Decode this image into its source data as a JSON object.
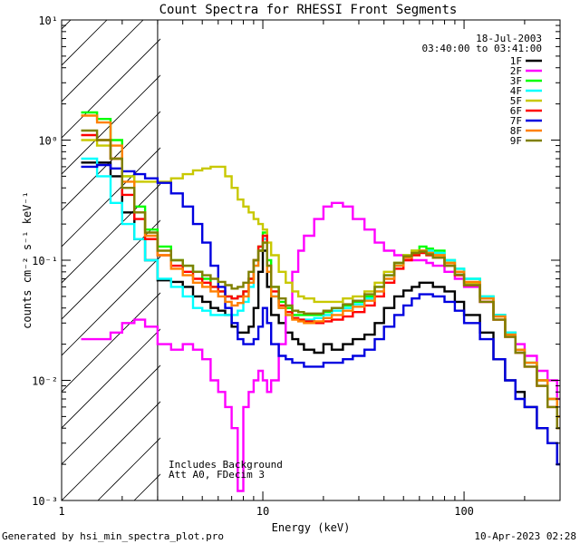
{
  "chart_data": {
    "type": "line",
    "title": "Count Spectra for RHESSI Front Segments",
    "xlabel": "Energy (keV)",
    "ylabel": "counts cm⁻² s⁻¹ keV⁻¹",
    "xscale": "log",
    "yscale": "log",
    "xlim": [
      1,
      300
    ],
    "ylim": [
      0.001,
      10
    ],
    "x_ticks": [
      {
        "value": 1,
        "label": "1"
      },
      {
        "value": 10,
        "label": "10"
      },
      {
        "value": 100,
        "label": "100"
      }
    ],
    "y_ticks": [
      {
        "value": 0.001,
        "label": "10⁻³"
      },
      {
        "value": 0.01,
        "label": "10⁻²"
      },
      {
        "value": 0.1,
        "label": "10⁻¹"
      },
      {
        "value": 1,
        "label": "10⁰"
      },
      {
        "value": 10,
        "label": "10¹"
      }
    ],
    "excluded_region": {
      "from": 1,
      "to": 3
    },
    "date": "18-Jul-2003",
    "time_range": "03:40:00 to 03:41:00",
    "annotations": [
      "Includes Background",
      "Att A0, FDecim 3"
    ],
    "series": [
      {
        "name": "1F",
        "color": "#000000",
        "x": [
          1.25,
          1.5,
          1.75,
          2.0,
          2.3,
          2.6,
          3.0,
          3.5,
          4.0,
          4.5,
          5.0,
          5.5,
          6.0,
          6.5,
          7.0,
          7.5,
          8.0,
          8.5,
          9.0,
          9.5,
          10.0,
          10.5,
          11.0,
          12.0,
          13.0,
          14.0,
          15.0,
          16.0,
          18.0,
          20.0,
          22.0,
          25.0,
          28.0,
          32.0,
          36.0,
          40.0,
          45.0,
          50.0,
          55.0,
          60.0,
          65.0,
          70.0,
          80.0,
          90.0,
          100.0,
          120.0,
          140.0,
          160.0,
          180.0,
          200.0,
          230.0,
          260.0,
          290.0
        ],
        "y": [
          0.65,
          0.65,
          0.5,
          0.25,
          0.15,
          0.1,
          0.068,
          0.066,
          0.06,
          0.05,
          0.045,
          0.04,
          0.038,
          0.035,
          0.028,
          0.025,
          0.025,
          0.028,
          0.04,
          0.08,
          0.12,
          0.06,
          0.035,
          0.03,
          0.025,
          0.022,
          0.02,
          0.018,
          0.017,
          0.02,
          0.018,
          0.02,
          0.022,
          0.024,
          0.03,
          0.04,
          0.05,
          0.056,
          0.06,
          0.065,
          0.065,
          0.06,
          0.055,
          0.045,
          0.035,
          0.025,
          0.015,
          0.01,
          0.008,
          0.006,
          0.004,
          0.003,
          0.002
        ]
      },
      {
        "name": "2F",
        "color": "#ff00ff",
        "x": [
          1.25,
          1.5,
          1.75,
          2.0,
          2.3,
          2.6,
          3.0,
          3.5,
          4.0,
          4.5,
          5.0,
          5.5,
          6.0,
          6.5,
          7.0,
          7.5,
          8.0,
          8.5,
          9.0,
          9.5,
          10.0,
          10.5,
          11.0,
          12.0,
          13.0,
          14.0,
          15.0,
          16.0,
          18.0,
          20.0,
          22.0,
          25.0,
          28.0,
          32.0,
          36.0,
          40.0,
          45.0,
          50.0,
          55.0,
          60.0,
          65.0,
          70.0,
          80.0,
          90.0,
          100.0,
          120.0,
          140.0,
          160.0,
          180.0,
          200.0,
          230.0,
          260.0,
          290.0
        ],
        "y": [
          0.022,
          0.022,
          0.025,
          0.03,
          0.032,
          0.028,
          0.02,
          0.018,
          0.02,
          0.018,
          0.015,
          0.01,
          0.008,
          0.006,
          0.004,
          0.0012,
          0.006,
          0.008,
          0.01,
          0.012,
          0.01,
          0.008,
          0.01,
          0.02,
          0.04,
          0.08,
          0.12,
          0.16,
          0.22,
          0.28,
          0.3,
          0.28,
          0.22,
          0.18,
          0.14,
          0.12,
          0.11,
          0.1,
          0.1,
          0.1,
          0.095,
          0.09,
          0.08,
          0.07,
          0.06,
          0.045,
          0.035,
          0.025,
          0.02,
          0.016,
          0.012,
          0.01,
          0.007
        ]
      },
      {
        "name": "3F",
        "color": "#00ff00",
        "x": [
          1.25,
          1.5,
          1.75,
          2.0,
          2.3,
          2.6,
          3.0,
          3.5,
          4.0,
          4.5,
          5.0,
          5.5,
          6.0,
          6.5,
          7.0,
          7.5,
          8.0,
          8.5,
          9.0,
          9.5,
          10.0,
          10.5,
          11.0,
          12.0,
          13.0,
          14.0,
          15.0,
          16.0,
          18.0,
          20.0,
          22.0,
          25.0,
          28.0,
          32.0,
          36.0,
          40.0,
          45.0,
          50.0,
          55.0,
          60.0,
          65.0,
          70.0,
          80.0,
          90.0,
          100.0,
          120.0,
          140.0,
          160.0,
          180.0,
          200.0,
          230.0,
          260.0,
          290.0
        ],
        "y": [
          1.7,
          1.5,
          1.0,
          0.5,
          0.28,
          0.18,
          0.13,
          0.1,
          0.09,
          0.08,
          0.07,
          0.06,
          0.055,
          0.05,
          0.048,
          0.05,
          0.055,
          0.07,
          0.1,
          0.13,
          0.17,
          0.1,
          0.06,
          0.045,
          0.04,
          0.035,
          0.035,
          0.035,
          0.035,
          0.037,
          0.04,
          0.042,
          0.045,
          0.05,
          0.06,
          0.075,
          0.095,
          0.11,
          0.12,
          0.13,
          0.125,
          0.12,
          0.1,
          0.085,
          0.07,
          0.05,
          0.035,
          0.025,
          0.018,
          0.014,
          0.01,
          0.007,
          0.005
        ]
      },
      {
        "name": "4F",
        "color": "#00ffff",
        "x": [
          1.25,
          1.5,
          1.75,
          2.0,
          2.3,
          2.6,
          3.0,
          3.5,
          4.0,
          4.5,
          5.0,
          5.5,
          6.0,
          6.5,
          7.0,
          7.5,
          8.0,
          8.5,
          9.0,
          9.5,
          10.0,
          10.5,
          11.0,
          12.0,
          13.0,
          14.0,
          15.0,
          16.0,
          18.0,
          20.0,
          22.0,
          25.0,
          28.0,
          32.0,
          36.0,
          40.0,
          45.0,
          50.0,
          55.0,
          60.0,
          65.0,
          70.0,
          80.0,
          90.0,
          100.0,
          120.0,
          140.0,
          160.0,
          180.0,
          200.0,
          230.0,
          260.0,
          290.0
        ],
        "y": [
          0.7,
          0.5,
          0.3,
          0.2,
          0.15,
          0.1,
          0.07,
          0.06,
          0.05,
          0.04,
          0.038,
          0.035,
          0.035,
          0.035,
          0.035,
          0.038,
          0.045,
          0.06,
          0.09,
          0.12,
          0.15,
          0.08,
          0.05,
          0.04,
          0.035,
          0.033,
          0.032,
          0.032,
          0.033,
          0.035,
          0.038,
          0.04,
          0.043,
          0.048,
          0.055,
          0.07,
          0.09,
          0.105,
          0.115,
          0.12,
          0.12,
          0.115,
          0.1,
          0.085,
          0.07,
          0.05,
          0.035,
          0.025,
          0.018,
          0.014,
          0.01,
          0.007,
          0.005
        ]
      },
      {
        "name": "5F",
        "color": "#c8c800",
        "x": [
          1.25,
          1.5,
          1.75,
          2.0,
          2.3,
          2.6,
          3.0,
          3.5,
          4.0,
          4.5,
          5.0,
          5.5,
          6.0,
          6.5,
          7.0,
          7.5,
          8.0,
          8.5,
          9.0,
          9.5,
          10.0,
          10.5,
          11.0,
          12.0,
          13.0,
          14.0,
          15.0,
          16.0,
          18.0,
          20.0,
          22.0,
          25.0,
          28.0,
          32.0,
          36.0,
          40.0,
          45.0,
          50.0,
          55.0,
          60.0,
          65.0,
          70.0,
          80.0,
          90.0,
          100.0,
          120.0,
          140.0,
          160.0,
          180.0,
          200.0,
          230.0,
          260.0,
          290.0
        ],
        "y": [
          1.0,
          0.9,
          0.7,
          0.5,
          0.45,
          0.45,
          0.45,
          0.48,
          0.52,
          0.56,
          0.58,
          0.6,
          0.6,
          0.5,
          0.4,
          0.32,
          0.28,
          0.25,
          0.22,
          0.2,
          0.18,
          0.14,
          0.11,
          0.08,
          0.065,
          0.055,
          0.05,
          0.048,
          0.045,
          0.045,
          0.045,
          0.048,
          0.05,
          0.055,
          0.065,
          0.08,
          0.095,
          0.11,
          0.12,
          0.12,
          0.115,
          0.11,
          0.095,
          0.08,
          0.065,
          0.048,
          0.034,
          0.024,
          0.018,
          0.014,
          0.01,
          0.007,
          0.005
        ]
      },
      {
        "name": "6F",
        "color": "#ff0000",
        "x": [
          1.25,
          1.5,
          1.75,
          2.0,
          2.3,
          2.6,
          3.0,
          3.5,
          4.0,
          4.5,
          5.0,
          5.5,
          6.0,
          6.5,
          7.0,
          7.5,
          8.0,
          8.5,
          9.0,
          9.5,
          10.0,
          10.5,
          11.0,
          12.0,
          13.0,
          14.0,
          15.0,
          16.0,
          18.0,
          20.0,
          22.0,
          25.0,
          28.0,
          32.0,
          36.0,
          40.0,
          45.0,
          50.0,
          55.0,
          60.0,
          65.0,
          70.0,
          80.0,
          90.0,
          100.0,
          120.0,
          140.0,
          160.0,
          180.0,
          200.0,
          230.0,
          260.0,
          290.0
        ],
        "y": [
          1.1,
          1.0,
          0.7,
          0.35,
          0.22,
          0.15,
          0.11,
          0.09,
          0.08,
          0.07,
          0.065,
          0.06,
          0.055,
          0.05,
          0.048,
          0.05,
          0.055,
          0.07,
          0.1,
          0.13,
          0.16,
          0.09,
          0.055,
          0.042,
          0.037,
          0.033,
          0.032,
          0.031,
          0.03,
          0.031,
          0.032,
          0.034,
          0.037,
          0.042,
          0.05,
          0.065,
          0.085,
          0.1,
          0.11,
          0.115,
          0.11,
          0.105,
          0.09,
          0.075,
          0.062,
          0.045,
          0.032,
          0.023,
          0.017,
          0.013,
          0.009,
          0.006,
          0.004
        ]
      },
      {
        "name": "7F",
        "color": "#0000e0",
        "x": [
          1.25,
          1.5,
          1.75,
          2.0,
          2.3,
          2.6,
          3.0,
          3.5,
          4.0,
          4.5,
          5.0,
          5.5,
          6.0,
          6.5,
          7.0,
          7.5,
          8.0,
          8.5,
          9.0,
          9.5,
          10.0,
          10.5,
          11.0,
          12.0,
          13.0,
          14.0,
          15.0,
          16.0,
          18.0,
          20.0,
          22.0,
          25.0,
          28.0,
          32.0,
          36.0,
          40.0,
          45.0,
          50.0,
          55.0,
          60.0,
          65.0,
          70.0,
          80.0,
          90.0,
          100.0,
          120.0,
          140.0,
          160.0,
          180.0,
          200.0,
          230.0,
          260.0,
          290.0
        ],
        "y": [
          0.6,
          0.62,
          0.58,
          0.55,
          0.52,
          0.48,
          0.44,
          0.36,
          0.28,
          0.2,
          0.14,
          0.09,
          0.06,
          0.04,
          0.03,
          0.022,
          0.02,
          0.02,
          0.022,
          0.028,
          0.04,
          0.03,
          0.02,
          0.016,
          0.015,
          0.014,
          0.014,
          0.013,
          0.013,
          0.014,
          0.014,
          0.015,
          0.016,
          0.018,
          0.022,
          0.028,
          0.035,
          0.042,
          0.048,
          0.052,
          0.052,
          0.05,
          0.045,
          0.038,
          0.03,
          0.022,
          0.015,
          0.01,
          0.007,
          0.006,
          0.004,
          0.003,
          0.002
        ]
      },
      {
        "name": "8F",
        "color": "#ff8000",
        "x": [
          1.25,
          1.5,
          1.75,
          2.0,
          2.3,
          2.6,
          3.0,
          3.5,
          4.0,
          4.5,
          5.0,
          5.5,
          6.0,
          6.5,
          7.0,
          7.5,
          8.0,
          8.5,
          9.0,
          9.5,
          10.0,
          10.5,
          11.0,
          12.0,
          13.0,
          14.0,
          15.0,
          16.0,
          18.0,
          20.0,
          22.0,
          25.0,
          28.0,
          32.0,
          36.0,
          40.0,
          45.0,
          50.0,
          55.0,
          60.0,
          65.0,
          70.0,
          80.0,
          90.0,
          100.0,
          120.0,
          140.0,
          160.0,
          180.0,
          200.0,
          230.0,
          260.0,
          290.0
        ],
        "y": [
          1.6,
          1.4,
          0.9,
          0.45,
          0.25,
          0.16,
          0.11,
          0.085,
          0.075,
          0.065,
          0.06,
          0.055,
          0.05,
          0.045,
          0.042,
          0.044,
          0.05,
          0.065,
          0.09,
          0.12,
          0.14,
          0.08,
          0.05,
          0.04,
          0.035,
          0.032,
          0.031,
          0.03,
          0.031,
          0.033,
          0.035,
          0.038,
          0.041,
          0.046,
          0.055,
          0.07,
          0.09,
          0.105,
          0.115,
          0.12,
          0.115,
          0.11,
          0.095,
          0.08,
          0.066,
          0.048,
          0.034,
          0.024,
          0.018,
          0.014,
          0.01,
          0.007,
          0.005
        ]
      },
      {
        "name": "9F",
        "color": "#808000",
        "x": [
          1.25,
          1.5,
          1.75,
          2.0,
          2.3,
          2.6,
          3.0,
          3.5,
          4.0,
          4.5,
          5.0,
          5.5,
          6.0,
          6.5,
          7.0,
          7.5,
          8.0,
          8.5,
          9.0,
          9.5,
          10.0,
          10.5,
          11.0,
          12.0,
          13.0,
          14.0,
          15.0,
          16.0,
          18.0,
          20.0,
          22.0,
          25.0,
          28.0,
          32.0,
          36.0,
          40.0,
          45.0,
          50.0,
          55.0,
          60.0,
          65.0,
          70.0,
          80.0,
          90.0,
          100.0,
          120.0,
          140.0,
          160.0,
          180.0,
          200.0,
          230.0,
          260.0,
          290.0
        ],
        "y": [
          1.2,
          1.0,
          0.7,
          0.4,
          0.25,
          0.17,
          0.12,
          0.1,
          0.09,
          0.08,
          0.075,
          0.07,
          0.066,
          0.062,
          0.058,
          0.06,
          0.065,
          0.08,
          0.1,
          0.12,
          0.14,
          0.09,
          0.06,
          0.048,
          0.042,
          0.038,
          0.037,
          0.036,
          0.036,
          0.038,
          0.04,
          0.043,
          0.046,
          0.052,
          0.06,
          0.075,
          0.095,
          0.108,
          0.115,
          0.118,
          0.112,
          0.105,
          0.09,
          0.076,
          0.062,
          0.045,
          0.032,
          0.023,
          0.017,
          0.013,
          0.009,
          0.006,
          0.004
        ]
      }
    ]
  },
  "footer": {
    "generated_by": "Generated by hsi_min_spectra_plot.pro",
    "date": "10-Apr-2023 02:28"
  }
}
